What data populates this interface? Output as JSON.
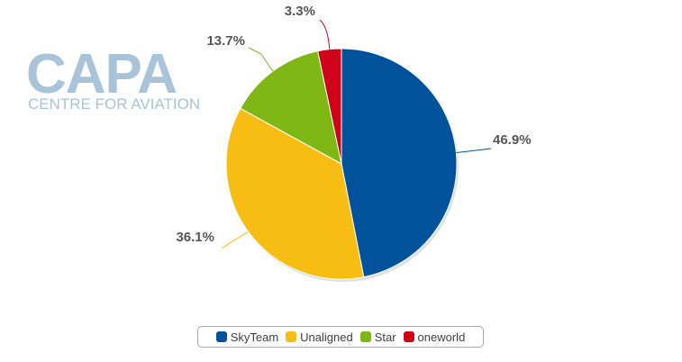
{
  "logo": {
    "main": "CAPA",
    "sub": "CENTRE FOR AVIATION"
  },
  "chart_data": {
    "type": "pie",
    "title": "",
    "slices": [
      {
        "name": "SkyTeam",
        "value": 46.9,
        "label": "46.9%",
        "color": "#00529b"
      },
      {
        "name": "Unaligned",
        "value": 36.1,
        "label": "36.1%",
        "color": "#f7bd13"
      },
      {
        "name": "Star",
        "value": 13.7,
        "label": "13.7%",
        "color": "#7fb714"
      },
      {
        "name": "oneworld",
        "value": 3.3,
        "label": "3.3%",
        "color": "#d0021b"
      }
    ],
    "legend_position": "bottom"
  }
}
